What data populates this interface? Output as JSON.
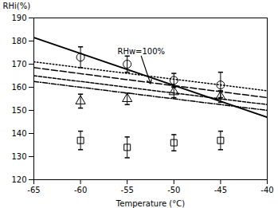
{
  "chart_data": {
    "type": "scatter",
    "xlabel": "Temperature (°C)",
    "ylabel": "RHi(%)",
    "xlim": [
      -65,
      -40
    ],
    "ylim": [
      120,
      190
    ],
    "xticks": [
      -65,
      -60,
      -55,
      -50,
      -45,
      -40
    ],
    "yticks": [
      120,
      130,
      140,
      150,
      160,
      170,
      180,
      190
    ],
    "series": [
      {
        "type": "line",
        "line_style": "solid",
        "color": "black",
        "x": [
          -65,
          -40
        ],
        "values": [
          181.5,
          147.0
        ]
      },
      {
        "type": "line",
        "line_style": "dotted",
        "color": "black",
        "x": [
          -65,
          -40
        ],
        "values": [
          171.0,
          158.5
        ]
      },
      {
        "type": "line",
        "line_style": "long_dashed",
        "color": "black",
        "x": [
          -65,
          -40
        ],
        "values": [
          168.5,
          155.5
        ]
      },
      {
        "type": "line",
        "line_style": "dashed",
        "color": "black",
        "x": [
          -65,
          -40
        ],
        "values": [
          165.0,
          152.5
        ]
      },
      {
        "type": "line",
        "line_style": "dashdot",
        "color": "black",
        "x": [
          -65,
          -40
        ],
        "values": [
          162.5,
          150.0
        ]
      },
      {
        "type": "scatter",
        "marker": "circle",
        "color": "black",
        "x": [
          -60,
          -55,
          -50,
          -45
        ],
        "values": [
          173,
          170,
          163,
          161
        ],
        "errors": [
          4.5,
          3.5,
          3.0,
          5.5
        ]
      },
      {
        "type": "scatter",
        "marker": "triangle",
        "color": "black",
        "x": [
          -60,
          -55,
          -50,
          -45
        ],
        "values": [
          154,
          155,
          158,
          156
        ],
        "errors": [
          3.0,
          2.5,
          2.5,
          2.5
        ]
      },
      {
        "type": "scatter",
        "marker": "square",
        "color": "black",
        "x": [
          -60,
          -55,
          -50,
          -45
        ],
        "values": [
          137,
          134,
          136,
          137
        ],
        "errors": [
          4.0,
          4.5,
          3.5,
          4.0
        ]
      }
    ],
    "annotations": [
      {
        "text": "RHw=100%",
        "x": -52.5,
        "y": 161.5,
        "text_x": -53.5,
        "text_y": 173.5
      }
    ]
  }
}
